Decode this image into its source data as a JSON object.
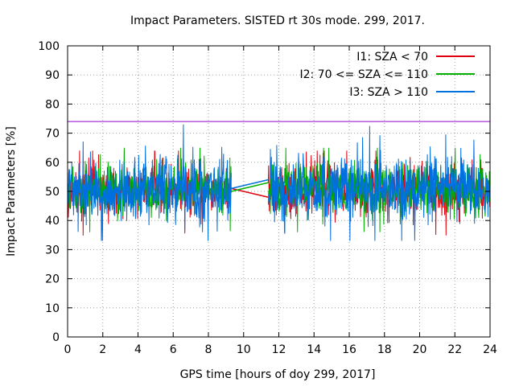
{
  "chart_data": {
    "type": "line",
    "title": "Impact Parameters. SISTED rt 30s mode. 299, 2017.",
    "xlabel": "GPS time [hours of doy 299, 2017]",
    "ylabel": "Impact Parameters [%]",
    "xlim": [
      0,
      24
    ],
    "ylim": [
      0,
      100
    ],
    "xticks": [
      "0",
      "2",
      "4",
      "6",
      "8",
      "10",
      "12",
      "14",
      "16",
      "18",
      "20",
      "22",
      "24"
    ],
    "yticks": [
      "0",
      "10",
      "20",
      "30",
      "40",
      "50",
      "60",
      "70",
      "80",
      "90",
      "100"
    ],
    "grid": true,
    "legend_position": "top-right",
    "gap": [
      9.3,
      11.4
    ],
    "reference_line": {
      "y": 74,
      "color": "#9400d3"
    },
    "series": [
      {
        "name": "I1: SZA < 70",
        "color": "#e0000e",
        "mean": 50.5,
        "spread": 4.0,
        "min": 31.0,
        "max": 64.0,
        "gap_line": [
          51.0,
          48.0
        ]
      },
      {
        "name": "I2: 70 <= SZA <= 110",
        "color": "#00b000",
        "mean": 50.5,
        "spread": 4.5,
        "min": 36.0,
        "max": 65.0,
        "gap_line": [
          50.0,
          53.0
        ]
      },
      {
        "name": "I3: SZA > 110",
        "color": "#0070e0",
        "mean": 50.5,
        "spread": 5.5,
        "min": 33.0,
        "max": 73.0,
        "gap_line": [
          51.0,
          54.0
        ]
      }
    ]
  }
}
